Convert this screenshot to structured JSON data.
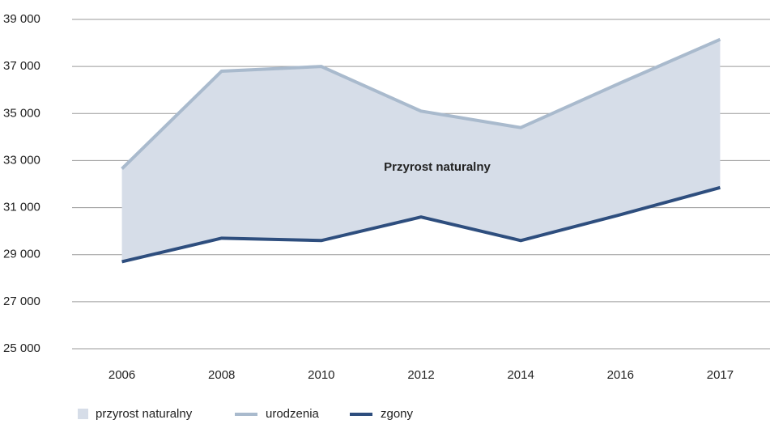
{
  "chart_data": {
    "type": "line",
    "categories": [
      "2006",
      "2008",
      "2010",
      "2012",
      "2014",
      "2016",
      "2017"
    ],
    "series": [
      {
        "name": "urodzenia",
        "color": "#a9bacd",
        "values": [
          32650,
          36800,
          37000,
          35100,
          34400,
          36300,
          38150
        ]
      },
      {
        "name": "zgony",
        "color": "#2e4e7e",
        "values": [
          28700,
          29700,
          29600,
          30600,
          29600,
          30700,
          31850
        ]
      }
    ],
    "fill_between": {
      "name": "przyrost naturalny",
      "color": "#d6dde8"
    },
    "annotation": "Przyrost naturalny",
    "ylim": [
      25000,
      39000
    ],
    "yticks": [
      {
        "value": 25000,
        "label": "25 000"
      },
      {
        "value": 27000,
        "label": "27 000"
      },
      {
        "value": 29000,
        "label": "29 000"
      },
      {
        "value": 31000,
        "label": "31 000"
      },
      {
        "value": 33000,
        "label": "33 000"
      },
      {
        "value": 35000,
        "label": "35 000"
      },
      {
        "value": 37000,
        "label": "37 000"
      },
      {
        "value": 39000,
        "label": "39 000"
      }
    ],
    "grid": true
  }
}
